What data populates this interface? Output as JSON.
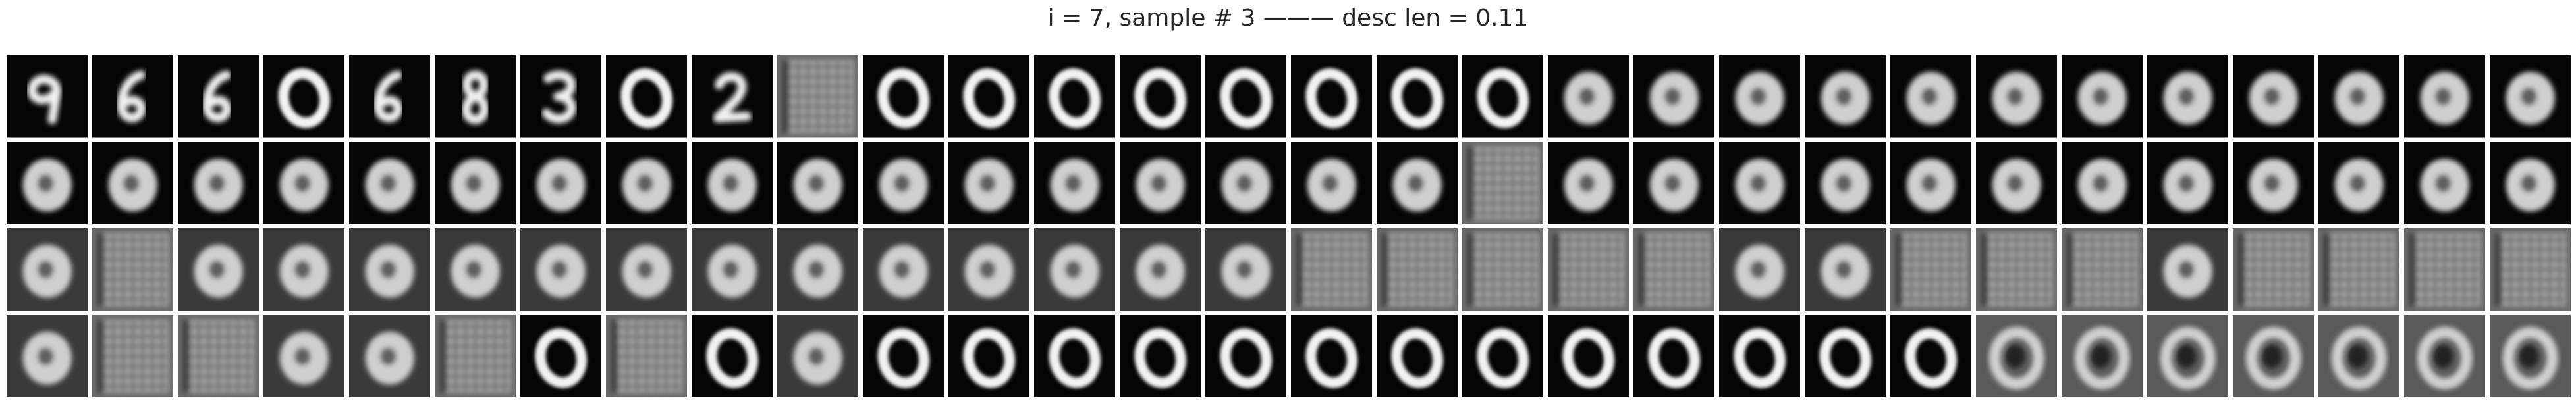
{
  "title": "i = 7, sample # 3 ——— desc len = 0.11",
  "grid": {
    "rows": 4,
    "cols": 30,
    "cells": [
      [
        "nine",
        "six",
        "six",
        "zero",
        "six",
        "eight",
        "three",
        "zero",
        "two",
        "grid",
        "zero",
        "zero",
        "zero",
        "zero",
        "zero",
        "zero",
        "zero",
        "zero",
        "blob",
        "blob",
        "blob",
        "blob",
        "blob",
        "blob",
        "blob",
        "blob",
        "blob",
        "blob",
        "blob",
        "blob"
      ],
      [
        "blob",
        "blob",
        "blob",
        "blob",
        "blob",
        "blob",
        "blob",
        "blob",
        "blob",
        "blob",
        "blob",
        "blob",
        "blob",
        "blob",
        "blob",
        "blob",
        "blob",
        "grid",
        "blob",
        "blob",
        "blob",
        "blob",
        "blob",
        "blob",
        "blob",
        "blob",
        "blob",
        "blob",
        "blob",
        "blob"
      ],
      [
        "blob",
        "grid",
        "blob",
        "blob",
        "blob",
        "blob",
        "blob",
        "blob",
        "blob",
        "blob",
        "blob",
        "blob",
        "blob",
        "blob",
        "blob",
        "grid",
        "grid",
        "grid",
        "grid",
        "grid",
        "blob",
        "blob",
        "grid",
        "grid",
        "grid",
        "blob",
        "grid",
        "grid",
        "grid",
        "grid"
      ],
      [
        "blob",
        "grid",
        "grid",
        "blob",
        "blob",
        "grid",
        "zero",
        "grid",
        "zero",
        "blob",
        "zero",
        "zero",
        "zero",
        "zero",
        "zero",
        "zero",
        "zero",
        "zero",
        "zero",
        "zero",
        "zero",
        "zero",
        "zero",
        "noisy",
        "noisy",
        "noisy",
        "noisy",
        "noisy",
        "noisy",
        "noisy"
      ]
    ]
  }
}
